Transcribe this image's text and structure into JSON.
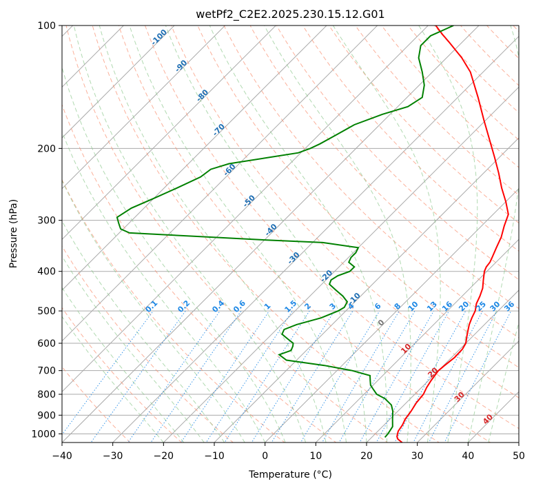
{
  "chart_data": {
    "type": "skew-t",
    "title": "wetPf2_C2E2.2025.230.15.12.G01",
    "xlabel": "Temperature (°C)",
    "ylabel": "Pressure (hPa)",
    "xlim": [
      -40,
      50
    ],
    "ylim": [
      1050,
      100
    ],
    "y_scale": "log",
    "x_ticks": [
      "−40",
      "−30",
      "−20",
      "−10",
      "0",
      "10",
      "20",
      "30",
      "40",
      "50"
    ],
    "x_tick_values": [
      -40,
      -30,
      -20,
      -10,
      0,
      10,
      20,
      30,
      40,
      50
    ],
    "y_ticks": [
      "100",
      "200",
      "300",
      "400",
      "500",
      "600",
      "700",
      "800",
      "900",
      "1000"
    ],
    "y_tick_values": [
      100,
      200,
      300,
      400,
      500,
      600,
      700,
      800,
      900,
      1000
    ],
    "grid": true,
    "colors": {
      "temperature": "#ff0000",
      "dewpoint": "#008000",
      "isotherm": "#aaaaaa",
      "dry_adiabat": "#fa8f6f",
      "moist_adiabat": "#8ec98e",
      "mixing_ratio": "#1e88e5",
      "isotherm_label": "#1f6fb4",
      "warm_label": "#d62728",
      "zero_label": "#777777"
    },
    "isotherm_labels": [
      {
        "value": "-100",
        "t": -100,
        "p": 108
      },
      {
        "value": "-90",
        "t": -90,
        "p": 127
      },
      {
        "value": "-80",
        "t": -80,
        "p": 150
      },
      {
        "value": "-70",
        "t": -70,
        "p": 182
      },
      {
        "value": "-60",
        "t": -60,
        "p": 228
      },
      {
        "value": "-50",
        "t": -50,
        "p": 272
      },
      {
        "value": "-40",
        "t": -40,
        "p": 320
      },
      {
        "value": "-30",
        "t": -30,
        "p": 375
      },
      {
        "value": "-20",
        "t": -20,
        "p": 415
      },
      {
        "value": "-10",
        "t": -10,
        "p": 472
      },
      {
        "value": "0",
        "t": 0,
        "p": 540
      },
      {
        "value": "10",
        "t": 10,
        "p": 625
      },
      {
        "value": "20",
        "t": 20,
        "p": 715
      },
      {
        "value": "30",
        "t": 30,
        "p": 820
      },
      {
        "value": "40",
        "t": 40,
        "p": 930
      }
    ],
    "mixing_ratio_labels": [
      "0.1",
      "0.2",
      "0.4",
      "0.6",
      "1",
      "1.5",
      "2",
      "3",
      "4",
      "6",
      "8",
      "10",
      "13",
      "16",
      "20",
      "25",
      "30",
      "36"
    ],
    "mixing_ratio_values": [
      0.1,
      0.2,
      0.4,
      0.6,
      1,
      1.5,
      2,
      3,
      4,
      6,
      8,
      10,
      13,
      16,
      20,
      25,
      30,
      36
    ],
    "series": [
      {
        "label": "temperature",
        "points": [
          [
            1050,
            27.0
          ],
          [
            1030,
            25.5
          ],
          [
            1015,
            24.8
          ],
          [
            1000,
            24.4
          ],
          [
            985,
            24.0
          ],
          [
            950,
            23.6
          ],
          [
            920,
            23.0
          ],
          [
            880,
            22.6
          ],
          [
            840,
            22.0
          ],
          [
            800,
            21.7
          ],
          [
            770,
            21.0
          ],
          [
            740,
            20.5
          ],
          [
            700,
            20.0
          ],
          [
            680,
            20.2
          ],
          [
            650,
            20.6
          ],
          [
            620,
            20.5
          ],
          [
            600,
            20.0
          ],
          [
            580,
            19.0
          ],
          [
            560,
            18.0
          ],
          [
            540,
            17.0
          ],
          [
            520,
            16.2
          ],
          [
            500,
            15.5
          ],
          [
            480,
            14.3
          ],
          [
            460,
            13.5
          ],
          [
            440,
            12.5
          ],
          [
            420,
            11.0
          ],
          [
            400,
            9.5
          ],
          [
            390,
            9.0
          ],
          [
            380,
            8.8
          ],
          [
            370,
            8.3
          ],
          [
            350,
            7.2
          ],
          [
            330,
            6.1
          ],
          [
            310,
            4.5
          ],
          [
            290,
            3.0
          ],
          [
            270,
            0.0
          ],
          [
            250,
            -3.5
          ],
          [
            230,
            -7.0
          ],
          [
            210,
            -11.0
          ],
          [
            190,
            -15.5
          ],
          [
            170,
            -20.5
          ],
          [
            150,
            -26.0
          ],
          [
            130,
            -32.5
          ],
          [
            120,
            -37.0
          ],
          [
            110,
            -42.5
          ],
          [
            105,
            -45.5
          ],
          [
            100,
            -48.5
          ]
        ]
      },
      {
        "label": "dewpoint",
        "points": [
          [
            1020,
            22.6
          ],
          [
            1000,
            22.5
          ],
          [
            960,
            22.0
          ],
          [
            920,
            20.5
          ],
          [
            880,
            19.0
          ],
          [
            850,
            17.5
          ],
          [
            820,
            15.0
          ],
          [
            800,
            12.5
          ],
          [
            780,
            11.0
          ],
          [
            760,
            9.5
          ],
          [
            740,
            8.5
          ],
          [
            720,
            7.5
          ],
          [
            700,
            3.0
          ],
          [
            680,
            -3.5
          ],
          [
            660,
            -12.0
          ],
          [
            640,
            -14.5
          ],
          [
            625,
            -13.0
          ],
          [
            610,
            -13.5
          ],
          [
            600,
            -14.0
          ],
          [
            585,
            -16.0
          ],
          [
            570,
            -18.0
          ],
          [
            555,
            -18.5
          ],
          [
            540,
            -17.0
          ],
          [
            520,
            -13.5
          ],
          [
            500,
            -11.5
          ],
          [
            490,
            -11.0
          ],
          [
            475,
            -11.5
          ],
          [
            460,
            -13.5
          ],
          [
            445,
            -16.0
          ],
          [
            430,
            -18.5
          ],
          [
            420,
            -19.0
          ],
          [
            410,
            -18.5
          ],
          [
            400,
            -17.0
          ],
          [
            390,
            -17.0
          ],
          [
            380,
            -19.0
          ],
          [
            370,
            -19.5
          ],
          [
            360,
            -19.5
          ],
          [
            350,
            -20.0
          ],
          [
            340,
            -28.0
          ],
          [
            335,
            -40.0
          ],
          [
            328,
            -55.0
          ],
          [
            322,
            -68.0
          ],
          [
            315,
            -70.5
          ],
          [
            305,
            -72.0
          ],
          [
            295,
            -73.5
          ],
          [
            280,
            -72.5
          ],
          [
            265,
            -70.0
          ],
          [
            250,
            -67.5
          ],
          [
            235,
            -65.0
          ],
          [
            225,
            -64.5
          ],
          [
            218,
            -62.0
          ],
          [
            210,
            -55.0
          ],
          [
            205,
            -50.5
          ],
          [
            200,
            -49.0
          ],
          [
            195,
            -48.0
          ],
          [
            185,
            -46.5
          ],
          [
            175,
            -45.0
          ],
          [
            165,
            -41.5
          ],
          [
            158,
            -38.0
          ],
          [
            150,
            -37.0
          ],
          [
            140,
            -39.0
          ],
          [
            130,
            -42.0
          ],
          [
            120,
            -45.5
          ],
          [
            112,
            -47.5
          ],
          [
            106,
            -47.5
          ],
          [
            100,
            -45.0
          ]
        ]
      }
    ]
  }
}
